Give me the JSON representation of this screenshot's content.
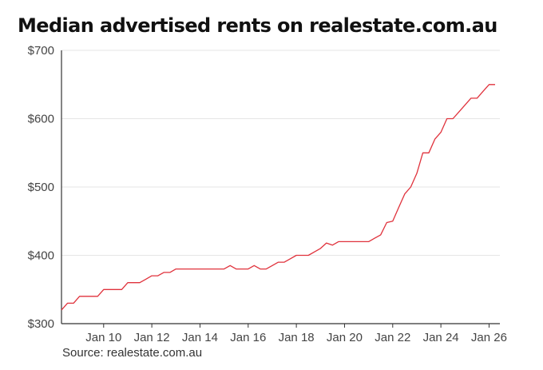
{
  "colors": {
    "line": "#e0323c",
    "grid": "#e6e6e6",
    "axis": "#333333",
    "text": "#444444"
  },
  "chart_data": {
    "type": "line",
    "title": "Median advertised rents on realestate.com.au",
    "source": "Source: realestate.com.au",
    "xlabel": "",
    "ylabel": "",
    "y_tick_values": [
      300,
      400,
      500,
      600,
      700
    ],
    "y_tick_labels": [
      "$300",
      "$400",
      "$500",
      "$600",
      "$700"
    ],
    "ylim": [
      300,
      700
    ],
    "xlim": [
      2008.25,
      2026.25
    ],
    "x_tick_values": [
      2010,
      2012,
      2014,
      2016,
      2018,
      2020,
      2022,
      2024,
      2026
    ],
    "x_tick_labels": [
      "Jan 10",
      "Jan 12",
      "Jan 14",
      "Jan 16",
      "Jan 18",
      "Jan 20",
      "Jan 22",
      "Jan 24",
      "Jan 26"
    ],
    "grid": true,
    "series": [
      {
        "name": "Median advertised rent",
        "x": [
          2008.25,
          2008.5,
          2008.75,
          2009.0,
          2009.25,
          2009.5,
          2009.75,
          2010.0,
          2010.25,
          2010.5,
          2010.75,
          2011.0,
          2011.25,
          2011.5,
          2011.75,
          2012.0,
          2012.25,
          2012.5,
          2012.75,
          2013.0,
          2013.25,
          2013.5,
          2013.75,
          2014.0,
          2014.25,
          2014.5,
          2014.75,
          2015.0,
          2015.25,
          2015.5,
          2015.75,
          2016.0,
          2016.25,
          2016.5,
          2016.75,
          2017.0,
          2017.25,
          2017.5,
          2017.75,
          2018.0,
          2018.25,
          2018.5,
          2018.75,
          2019.0,
          2019.25,
          2019.5,
          2019.75,
          2020.0,
          2020.25,
          2020.5,
          2020.75,
          2021.0,
          2021.25,
          2021.5,
          2021.75,
          2022.0,
          2022.25,
          2022.5,
          2022.75,
          2023.0,
          2023.25,
          2023.5,
          2023.75,
          2024.0,
          2024.25,
          2024.5,
          2024.75,
          2025.0,
          2025.25,
          2025.5,
          2025.75,
          2026.0,
          2026.25
        ],
        "values": [
          320,
          330,
          330,
          340,
          340,
          340,
          340,
          350,
          350,
          350,
          350,
          360,
          360,
          360,
          365,
          370,
          370,
          375,
          375,
          380,
          380,
          380,
          380,
          380,
          380,
          380,
          380,
          380,
          385,
          380,
          380,
          380,
          385,
          380,
          380,
          385,
          390,
          390,
          395,
          400,
          400,
          400,
          405,
          410,
          418,
          415,
          420,
          420,
          420,
          420,
          420,
          420,
          425,
          430,
          448,
          450,
          470,
          490,
          500,
          520,
          550,
          550,
          570,
          580,
          600,
          600,
          610,
          620,
          630,
          630,
          640,
          650,
          650
        ]
      }
    ]
  }
}
